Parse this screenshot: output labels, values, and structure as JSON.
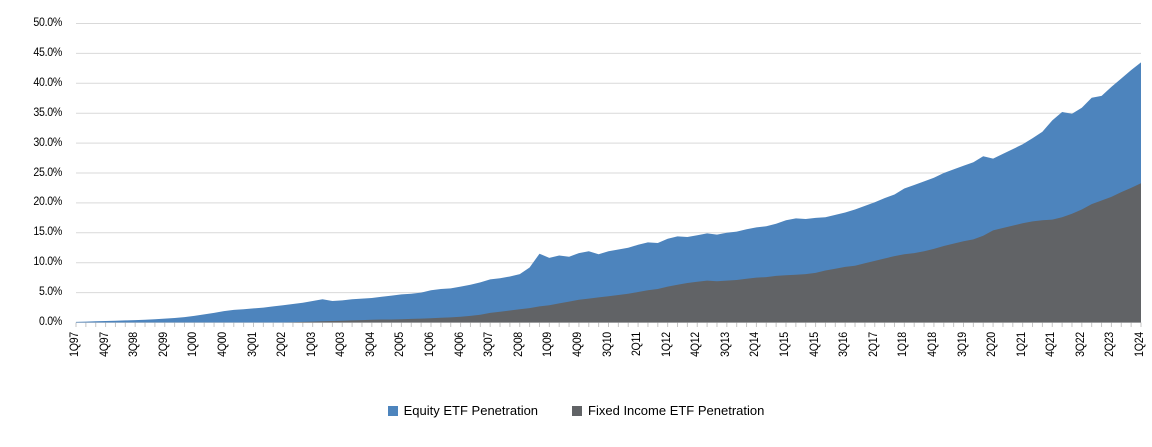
{
  "chart_data": {
    "type": "area",
    "title": "",
    "xlabel": "",
    "ylabel": "",
    "ylim": [
      0,
      50
    ],
    "y_tick_step": 5,
    "y_tick_labels": [
      "0.0%",
      "5.0%",
      "10.0%",
      "15.0%",
      "20.0%",
      "25.0%",
      "30.0%",
      "35.0%",
      "40.0%",
      "45.0%",
      "50.0%"
    ],
    "x_unit": "quarter",
    "x_start": "1Q97",
    "x_end": "1Q24",
    "x_label_every_n": 3,
    "x_tick_labels": [
      "1Q97",
      "4Q97",
      "3Q98",
      "2Q99",
      "1Q00",
      "4Q00",
      "3Q01",
      "2Q02",
      "1Q03",
      "4Q03",
      "3Q04",
      "2Q05",
      "1Q06",
      "4Q06",
      "3Q07",
      "2Q08",
      "1Q09",
      "4Q09",
      "3Q10",
      "2Q11",
      "1Q12",
      "4Q12",
      "3Q13",
      "2Q14",
      "1Q15",
      "4Q15",
      "3Q16",
      "2Q17",
      "1Q18",
      "4Q18",
      "3Q19",
      "2Q20",
      "1Q21",
      "4Q21",
      "3Q22",
      "2Q23",
      "1Q24"
    ],
    "grid": true,
    "gridline_color": "#d9d9d9",
    "tick_color": "#c6c6c6",
    "legend_position": "bottom",
    "series": [
      {
        "name": "Equity ETF Penetration",
        "color": "#4d84bd",
        "values": [
          0.1,
          0.15,
          0.2,
          0.25,
          0.3,
          0.35,
          0.4,
          0.45,
          0.55,
          0.65,
          0.75,
          0.9,
          1.1,
          1.35,
          1.6,
          1.9,
          2.1,
          2.2,
          2.35,
          2.5,
          2.7,
          2.9,
          3.1,
          3.3,
          3.6,
          3.9,
          3.6,
          3.7,
          3.9,
          4.0,
          4.1,
          4.3,
          4.5,
          4.7,
          4.8,
          5.0,
          5.4,
          5.6,
          5.7,
          6.0,
          6.3,
          6.7,
          7.2,
          7.4,
          7.7,
          8.1,
          9.2,
          11.5,
          10.8,
          11.2,
          11.0,
          11.6,
          11.9,
          11.4,
          11.9,
          12.2,
          12.5,
          13.0,
          13.4,
          13.3,
          14.0,
          14.4,
          14.3,
          14.6,
          14.9,
          14.7,
          15.0,
          15.2,
          15.6,
          15.9,
          16.1,
          16.5,
          17.1,
          17.4,
          17.3,
          17.5,
          17.6,
          18.0,
          18.4,
          18.9,
          19.5,
          20.1,
          20.8,
          21.4,
          22.4,
          23.0,
          23.6,
          24.2,
          25.0,
          25.6,
          26.2,
          26.8,
          27.8,
          27.4,
          28.2,
          29.0,
          29.8,
          30.8,
          31.9,
          33.8,
          35.2,
          34.9,
          35.9,
          37.6,
          37.9,
          39.4,
          40.8,
          42.2,
          43.5
        ]
      },
      {
        "name": "Fixed Income ETF Penetration",
        "color": "#616366",
        "values": [
          0,
          0,
          0,
          0,
          0,
          0,
          0,
          0,
          0,
          0,
          0,
          0,
          0,
          0,
          0,
          0,
          0,
          0,
          0,
          0,
          0,
          0,
          0.05,
          0.1,
          0.15,
          0.2,
          0.25,
          0.3,
          0.35,
          0.4,
          0.45,
          0.5,
          0.5,
          0.55,
          0.6,
          0.65,
          0.7,
          0.8,
          0.85,
          0.95,
          1.1,
          1.3,
          1.6,
          1.8,
          2.0,
          2.2,
          2.4,
          2.7,
          2.9,
          3.2,
          3.5,
          3.8,
          4.0,
          4.2,
          4.4,
          4.6,
          4.8,
          5.1,
          5.4,
          5.6,
          6.0,
          6.3,
          6.6,
          6.8,
          7.0,
          6.9,
          7.0,
          7.1,
          7.3,
          7.5,
          7.6,
          7.8,
          7.9,
          8.0,
          8.1,
          8.3,
          8.7,
          9.0,
          9.3,
          9.5,
          9.9,
          10.3,
          10.7,
          11.1,
          11.4,
          11.6,
          11.9,
          12.3,
          12.8,
          13.2,
          13.6,
          13.9,
          14.5,
          15.4,
          15.8,
          16.2,
          16.6,
          16.9,
          17.1,
          17.2,
          17.6,
          18.2,
          18.9,
          19.8,
          20.4,
          21.0,
          21.8,
          22.5,
          23.3
        ]
      }
    ]
  },
  "legend": {
    "items": [
      {
        "label": "Equity ETF Penetration",
        "color": "#4d84bd"
      },
      {
        "label": "Fixed Income ETF Penetration",
        "color": "#616366"
      }
    ]
  }
}
